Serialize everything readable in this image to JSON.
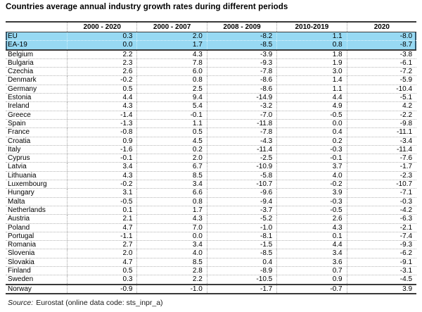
{
  "title": "Countries average annual industry growth rates during different periods",
  "source": {
    "label": "Source:",
    "text": "Eurostat (online data code: sts_inpr_a)"
  },
  "colors": {
    "highlight_row": "#97D9F3",
    "table_line": "#3a3a3a",
    "grid_dotted": "#a8a8a8",
    "text": "#000000"
  },
  "chart_data": {
    "type": "table",
    "title": "Countries average annual industry growth rates during different periods",
    "unit": "average annual growth rate",
    "columns": [
      "2000 - 2020",
      "2000 - 2007",
      "2008 - 2009",
      "2010-2019",
      "2020"
    ],
    "row_header_label": "",
    "highlighted_rows": [
      "EU",
      "EA-19"
    ],
    "source": "Eurostat (online data code: sts_inpr_a)",
    "row_groups": [
      {
        "name": "eu-aggregates",
        "highlight": true,
        "rows": [
          {
            "label": "EU",
            "values": [
              0.3,
              2.0,
              -8.2,
              1.1,
              -8.0
            ]
          },
          {
            "label": "EA-19",
            "values": [
              0.0,
              1.7,
              -8.5,
              0.8,
              -8.7
            ]
          }
        ]
      },
      {
        "name": "eu-members",
        "highlight": false,
        "rows": [
          {
            "label": "Belgium",
            "values": [
              2.2,
              4.3,
              -3.9,
              1.8,
              -3.8
            ]
          },
          {
            "label": "Bulgaria",
            "values": [
              2.3,
              7.8,
              -9.3,
              1.9,
              -6.1
            ]
          },
          {
            "label": "Czechia",
            "values": [
              2.6,
              6.0,
              -7.8,
              3.0,
              -7.2
            ]
          },
          {
            "label": "Denmark",
            "values": [
              -0.2,
              0.8,
              -8.6,
              1.4,
              -5.9
            ]
          },
          {
            "label": "Germany",
            "values": [
              0.5,
              2.5,
              -8.6,
              1.1,
              -10.4
            ]
          },
          {
            "label": "Estonia",
            "values": [
              4.4,
              9.4,
              -14.9,
              4.4,
              -5.1
            ]
          },
          {
            "label": "Ireland",
            "values": [
              4.3,
              5.4,
              -3.2,
              4.9,
              4.2
            ]
          },
          {
            "label": "Greece",
            "values": [
              -1.4,
              -0.1,
              -7.0,
              -0.5,
              -2.2
            ]
          },
          {
            "label": "Spain",
            "values": [
              -1.3,
              1.1,
              -11.8,
              0.0,
              -9.8
            ]
          },
          {
            "label": "France",
            "values": [
              -0.8,
              0.5,
              -7.8,
              0.4,
              -11.1
            ]
          },
          {
            "label": "Croatia",
            "values": [
              0.9,
              4.5,
              -4.3,
              0.2,
              -3.4
            ]
          },
          {
            "label": "Italy",
            "values": [
              -1.6,
              0.2,
              -11.4,
              -0.3,
              -11.4
            ]
          },
          {
            "label": "Cyprus",
            "values": [
              -0.1,
              2.0,
              -2.5,
              -0.1,
              -7.6
            ]
          },
          {
            "label": "Latvia",
            "values": [
              3.4,
              6.7,
              -10.9,
              3.7,
              -1.7
            ]
          },
          {
            "label": "Lithuania",
            "values": [
              4.3,
              8.5,
              -5.8,
              4.0,
              -2.3
            ]
          },
          {
            "label": "Luxembourg",
            "values": [
              -0.2,
              3.4,
              -10.7,
              -0.2,
              -10.7
            ]
          },
          {
            "label": "Hungary",
            "values": [
              3.1,
              6.6,
              -9.6,
              3.9,
              -7.1
            ]
          },
          {
            "label": "Malta",
            "values": [
              -0.5,
              0.8,
              -9.4,
              -0.3,
              -0.3
            ]
          },
          {
            "label": "Netherlands",
            "values": [
              0.1,
              1.7,
              -3.7,
              -0.5,
              -4.2
            ]
          },
          {
            "label": "Austria",
            "values": [
              2.1,
              4.3,
              -5.2,
              2.6,
              -6.3
            ]
          },
          {
            "label": "Poland",
            "values": [
              4.7,
              7.0,
              -1.0,
              4.3,
              -2.1
            ]
          },
          {
            "label": "Portugal",
            "values": [
              -1.1,
              0.0,
              -8.1,
              0.1,
              -7.4
            ]
          },
          {
            "label": "Romania",
            "values": [
              2.7,
              3.4,
              -1.5,
              4.4,
              -9.3
            ]
          },
          {
            "label": "Slovenia",
            "values": [
              2.0,
              4.0,
              -8.5,
              3.4,
              -6.2
            ]
          },
          {
            "label": "Slovakia",
            "values": [
              4.7,
              8.5,
              0.4,
              3.6,
              -9.1
            ]
          },
          {
            "label": "Finland",
            "values": [
              0.5,
              2.8,
              -8.9,
              0.7,
              -3.1
            ]
          },
          {
            "label": "Sweden",
            "values": [
              0.3,
              2.2,
              -10.5,
              0.9,
              -4.5
            ]
          }
        ]
      },
      {
        "name": "non-eu",
        "highlight": false,
        "rows": [
          {
            "label": "Norway",
            "values": [
              -0.9,
              -1.0,
              -1.7,
              -0.7,
              3.9
            ]
          }
        ]
      }
    ]
  }
}
